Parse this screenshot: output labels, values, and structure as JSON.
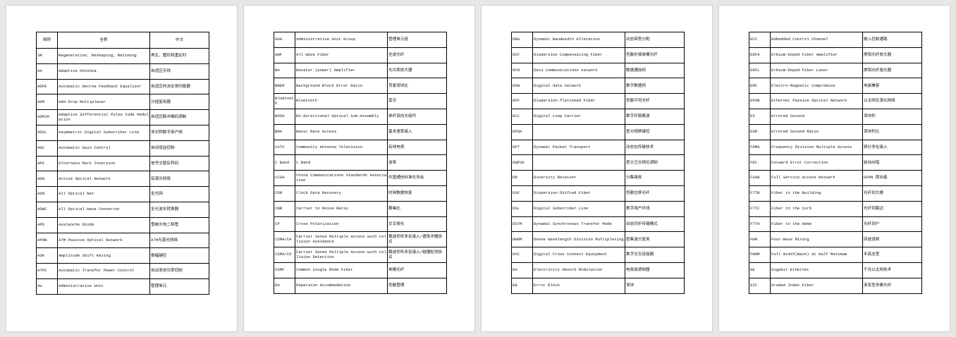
{
  "header": [
    "简称",
    "全称",
    "中文"
  ],
  "pages": [
    {
      "rows": [
        [
          "3R",
          "Regeneration, Reshaping, Retiming",
          "再生、整形和重定时"
        ],
        [
          "AA",
          "Adaptive Antenna",
          "自适应天线"
        ],
        [
          "ADFE",
          "Automatic Decree Feedback Equalizer",
          "自适应判决反馈均衡器"
        ],
        [
          "ADM",
          "Add Drop Multiplexer",
          "分插复用器"
        ],
        [
          "ADPCM",
          "Adaptive Differential Pulse Code Modulation",
          "自适应脉冲编码调制"
        ],
        [
          "ADSL",
          "Asymmetric Digital Subscriber Line",
          "非对称数字用户线"
        ],
        [
          "AGC",
          "Automatic Gain Control",
          "自动增益控制"
        ],
        [
          "AMI",
          "Alternate Mark Inversion",
          "信号交替反转码"
        ],
        [
          "AON",
          "Active Optical Network",
          "有源光网络"
        ],
        [
          "AON",
          "All Optical Net",
          "全光网"
        ],
        [
          "AOWC",
          "All Optical Wave Converter",
          "全光波长转换器"
        ],
        [
          "APD",
          "Avalanche Diode",
          "雪崩光电二极管"
        ],
        [
          "APON",
          "ATM Passive Optical Network",
          "ATM无源光网络"
        ],
        [
          "ASK",
          "Amplitude Shift Keying",
          "振幅键控"
        ],
        [
          "ATPC",
          "Automatic Transfer Power Control",
          "自动发信功率控制"
        ],
        [
          "AU",
          "Administrative Unit",
          "管理单元"
        ]
      ]
    },
    {
      "rows": [
        [
          "AUG",
          "Administrative Unit Group",
          "管理单元组"
        ],
        [
          "AWF",
          "All Wave Fiber",
          "全波光纤"
        ],
        [
          "BA",
          "Booster (power) Amplifier",
          "光功率放大器"
        ],
        [
          "BBER",
          "Background Block Error Ratio",
          "背景误块比"
        ],
        [
          "Bluetooth",
          "Bluetooth",
          "蓝牙"
        ],
        [
          "BOSA",
          "Bi-directional Optical Sub-Assembly",
          "单纤双向光组件"
        ],
        [
          "BRA",
          "Basic Rate Access",
          "基本速率接入"
        ],
        [
          "CATV",
          "Community Antenna Television",
          "有线电视"
        ],
        [
          "C Band",
          "C Band",
          "波带"
        ],
        [
          "CCSA",
          "China Communications Standards Association",
          "中国通信标准化协会"
        ],
        [
          "CDR",
          "Clock Data Recovery",
          "时钟数据恢复"
        ],
        [
          "CNR",
          "Carrier to Noise Ratio",
          "载噪比"
        ],
        [
          "CP",
          "Cross Polarization",
          "交叉极化"
        ],
        [
          "CSMA/CA",
          "Carrier Sense Multiple Access with Collision Avoidance",
          "载波侦听多址接入/避免冲撞协议"
        ],
        [
          "CSMA/CD",
          "Carrier Sense Multiple Access with Collision Detection",
          "载波侦听多址接入/碰撞检测协议"
        ],
        [
          "CSMF",
          "Common Single Mode Fiber",
          "单模光纤"
        ],
        [
          "DA",
          "Depersion Accommodation",
          "色散管理"
        ]
      ]
    },
    {
      "rows": [
        [
          "DBA",
          "Dynamic Bandwidth Allocation",
          "动态带宽分配"
        ],
        [
          "DCF",
          "Dispersion Compensating Fiber",
          "色散补偿单模光纤"
        ],
        [
          "DCN",
          "Data communications network",
          "数据通信网"
        ],
        [
          "DDN",
          "Digital data network",
          "数字数据网"
        ],
        [
          "DFF",
          "Dispersion-flattened Fiber",
          "色散平坦光纤"
        ],
        [
          "DLC",
          "Digital Loop Carrier",
          "数字环路载波"
        ],
        [
          "DPSK",
          "",
          "差分相移键控"
        ],
        [
          "DPT",
          "Dynamic Packet Transport",
          "动态包传输技术"
        ],
        [
          "DQPSK",
          "",
          "差分正交相位调制"
        ],
        [
          "DR",
          "Diversity Receiver",
          "分集接收"
        ],
        [
          "DSF",
          "Dispersion-Shifted Fiber",
          "色散位移光纤"
        ],
        [
          "DSL",
          "Digital Subscriber Line",
          "数字用户环线"
        ],
        [
          "DSTM",
          "Dynamic Synchronous Transfer Mode",
          "动态同步传输模式"
        ],
        [
          "DWDM",
          "Dense Wavelength Division Multiplexing",
          "密集波分复用"
        ],
        [
          "DXC",
          "Digital Cross Connect Equipment",
          "数字交叉连接器"
        ],
        [
          "EA",
          "Electricity Absorb Modulation",
          "电吸收调制器"
        ],
        [
          "EB",
          "Error Block",
          "误块"
        ]
      ]
    },
    {
      "rows": [
        [
          "ECC",
          "Embedded Control Channel",
          "嵌入控制通路"
        ],
        [
          "EDFA",
          "Erbium-Doped Fiber Amplifier",
          "掺铒光纤放大器"
        ],
        [
          "EDFL",
          "Erbium-Doped Fiber Laser",
          "掺铒光纤激光器"
        ],
        [
          "EMC",
          "Electro-Magnetic Compromise",
          "电磁兼容"
        ],
        [
          "EPON",
          "Ethernet Passive Optical Network",
          "以太网无源光网络"
        ],
        [
          "ES",
          "Errored Second",
          "误块秒"
        ],
        [
          "ESR",
          "Errored Second Ratio",
          "误块秒比"
        ],
        [
          "FDMA",
          "Frequency Division Multiple Access",
          "频分多址接入"
        ],
        [
          "FEC",
          "Forward Error Correction",
          "前向纠错"
        ],
        [
          "FSAN",
          "Full Service Access Network",
          "GPON 提出者"
        ],
        [
          "FTTB",
          "Fiber to the Building",
          "光纤到大楼"
        ],
        [
          "FTTC",
          "Fiber to the Curb",
          "光纤到路边"
        ],
        [
          "FTTH",
          "Fiber to the Home",
          "光纤到户"
        ],
        [
          "FWM",
          "Four-Wave Mixing",
          "四波混频"
        ],
        [
          "FWHM",
          "Full Width(Wave) at Half Maximum",
          "半高全宽"
        ],
        [
          "GE",
          "Gigabit Ethernet",
          "千兆以太网技术"
        ],
        [
          "GIF",
          "Graded Index Fiber",
          "渐变型多模光纤"
        ]
      ]
    }
  ]
}
